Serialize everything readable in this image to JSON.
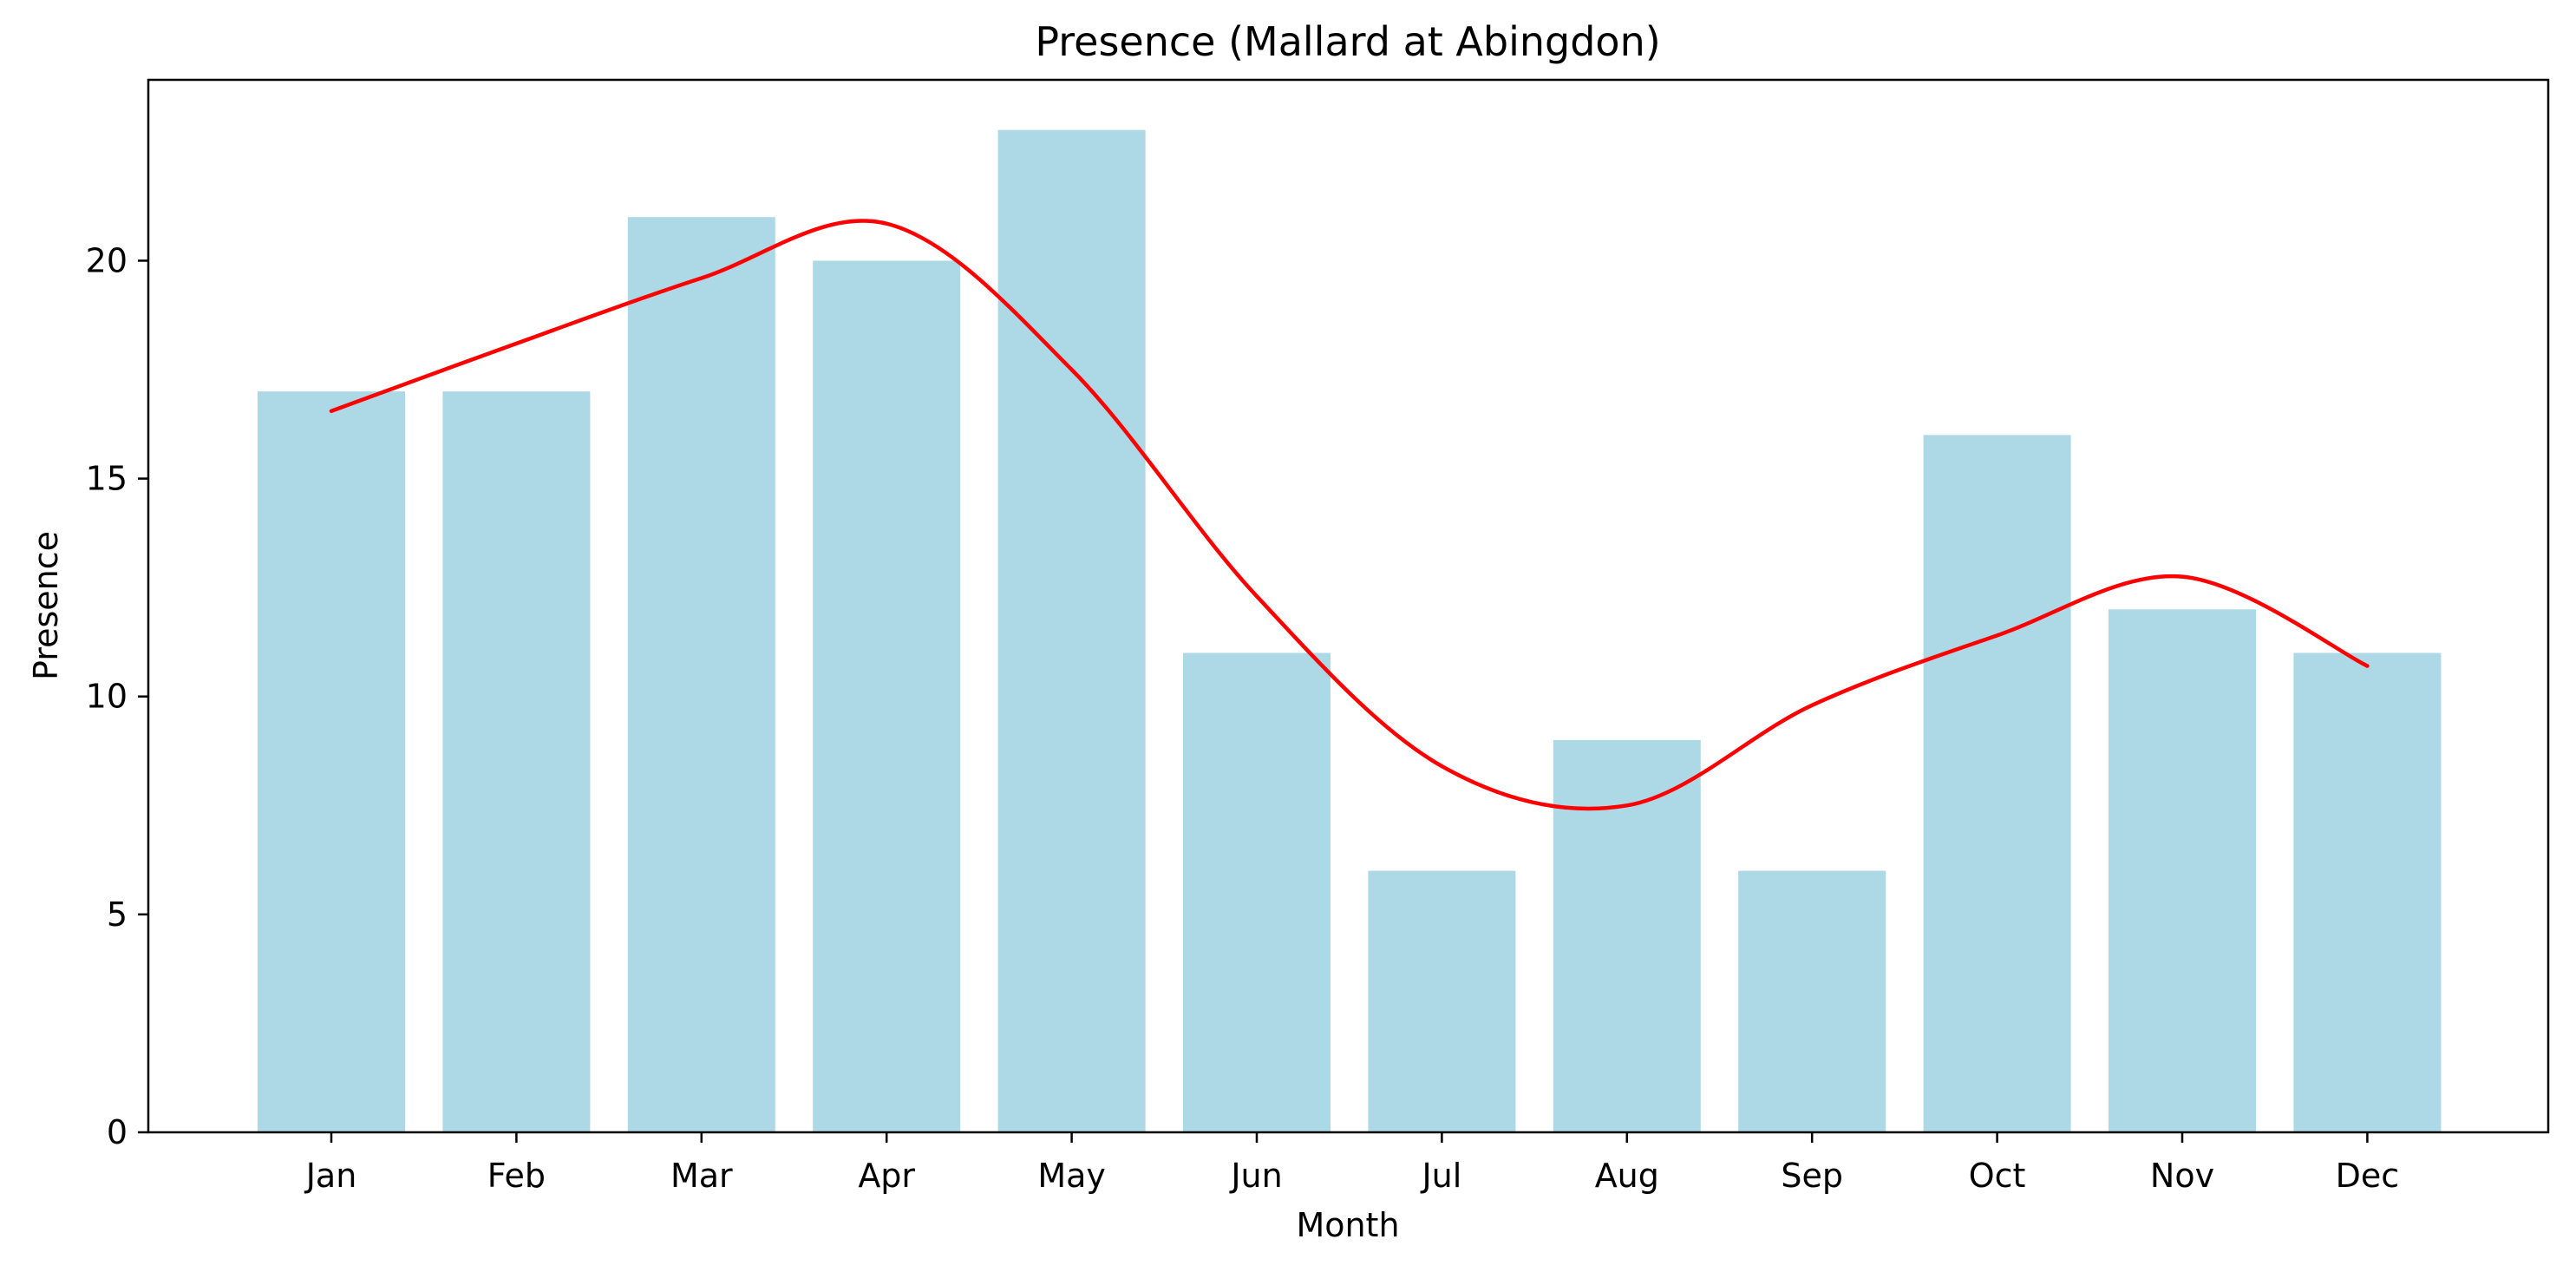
{
  "chart_data": {
    "type": "bar",
    "title": "Presence (Mallard at Abingdon)",
    "xlabel": "Month",
    "ylabel": "Presence",
    "categories": [
      "Jan",
      "Feb",
      "Mar",
      "Apr",
      "May",
      "Jun",
      "Jul",
      "Aug",
      "Sep",
      "Oct",
      "Nov",
      "Dec"
    ],
    "values": [
      17,
      17,
      21,
      20,
      23,
      11,
      6,
      9,
      6,
      16,
      12,
      11
    ],
    "trend_line": [
      16.55,
      18.1,
      19.6,
      20.85,
      17.5,
      12.3,
      8.4,
      7.5,
      9.8,
      11.4,
      12.75,
      10.7
    ],
    "yticks": [
      0,
      5,
      10,
      15,
      20
    ],
    "ylim": [
      0,
      24.15
    ],
    "grid": false,
    "bar_color": "#add8e6",
    "line_color": "#ff0000"
  }
}
